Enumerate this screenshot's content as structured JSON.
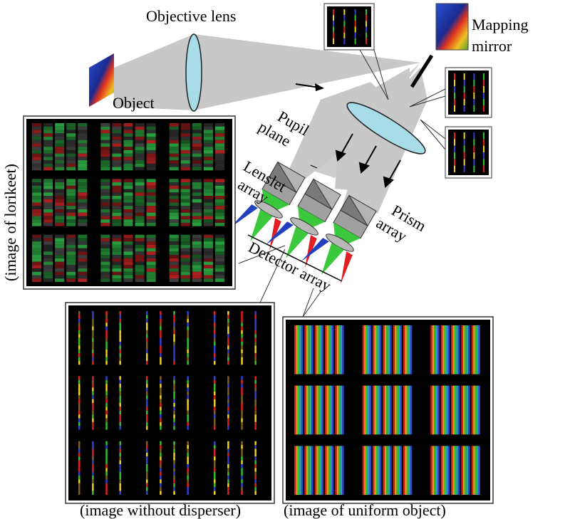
{
  "labels": {
    "objective_lens": "Objective lens",
    "mapping": "Mapping",
    "mirror": "mirror",
    "object": "Object",
    "pupil": "Pupil",
    "plane": "plane",
    "lenslet": "Lenslet",
    "lenslet_array": "array",
    "prism": "Prism",
    "prism_array": "array",
    "detector_array": "Detector array",
    "image_lorikeet": "(image of lorikeet)",
    "image_without_disperser": "(image without disperser)",
    "image_uniform": "(image of uniform object)"
  },
  "colors": {
    "beam": "#c8c8c8",
    "lens": "#a8dce8",
    "prism_dark": "#7a7a7a",
    "prism_light": "#b4b4b4",
    "green": "#3cc83c",
    "red": "#e02020",
    "blue": "#2040c0"
  }
}
